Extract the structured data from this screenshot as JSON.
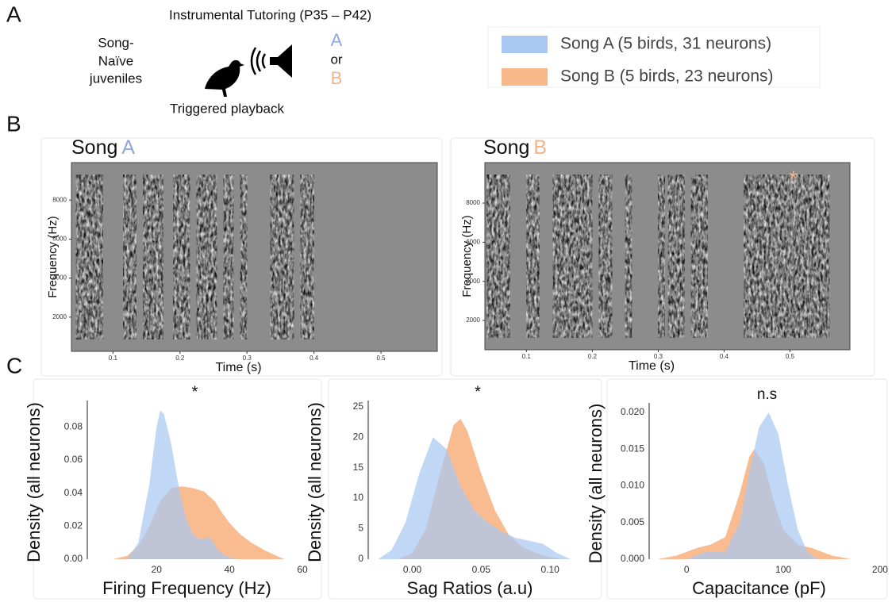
{
  "panel_labels": [
    "A",
    "B",
    "C"
  ],
  "tutoring": {
    "title": "Instrumental Tutoring (P35 – P42)",
    "group_lines": [
      "Song-",
      "Naïve",
      "juveniles"
    ],
    "option_a": "A",
    "option_or": "or",
    "option_b": "B",
    "caption": "Triggered playback"
  },
  "legend": [
    {
      "name": "Song A (5 birds, 31 neurons)",
      "color": "#a9c8f2"
    },
    {
      "name": "Song B (5 birds, 23 neurons)",
      "color": "#f8b88a"
    }
  ],
  "spectrograms": [
    {
      "title": "Song",
      "letter": "A",
      "letter_color": "#8fa8d8",
      "ylabel": "Frequency (Hz)",
      "xlabel": "Time (s)",
      "xlim": [
        0.038,
        0.584
      ],
      "xticks": [
        0.1,
        0.2,
        0.3,
        0.4,
        0.5
      ],
      "ylim": [
        245,
        9920
      ],
      "yticks": [
        2000,
        4000,
        6000,
        8000
      ]
    },
    {
      "title": "Song",
      "letter": "B",
      "letter_color": "#f2b48a",
      "ylabel": "Frequency (Hz)",
      "xlabel": "Time (s)",
      "xlim": [
        0.037,
        0.591
      ],
      "xticks": [
        0.1,
        0.2,
        0.3,
        0.4,
        0.5
      ],
      "ylim": [
        500,
        10070
      ],
      "yticks": [
        2000,
        4000,
        6000,
        8000
      ],
      "annotation": "*"
    }
  ],
  "chart_data": [
    {
      "type": "area",
      "annotation": "*",
      "ylabel": "Density (all neurons)",
      "xlabel": "Firing Frequency (Hz)",
      "xlim": [
        1,
        60
      ],
      "xticks": [
        20,
        40,
        60
      ],
      "ylim": [
        0,
        0.096
      ],
      "yticks": [
        {
          "value": 0,
          "label": "0.00"
        },
        {
          "value": 0.02,
          "label": "0.02"
        },
        {
          "value": 0.04,
          "label": "0.04"
        },
        {
          "value": 0.06,
          "label": "0.06"
        },
        {
          "value": 0.08,
          "label": "0.08"
        }
      ],
      "series": [
        {
          "name": "Song B (5 birds, 23 neurons)",
          "color": "#f8b88a",
          "x": [
            8,
            12,
            15,
            18,
            21,
            24,
            27,
            30,
            33,
            36,
            38,
            40,
            43,
            46,
            50,
            55
          ],
          "values": [
            0,
            0.002,
            0.008,
            0.02,
            0.035,
            0.043,
            0.044,
            0.043,
            0.041,
            0.035,
            0.028,
            0.022,
            0.015,
            0.01,
            0.005,
            0
          ]
        },
        {
          "name": "Song A (5 birds, 31 neurons)",
          "color": "#a9c8f2",
          "x": [
            12,
            15,
            18,
            20,
            21,
            22,
            24,
            26,
            28,
            30,
            32,
            34,
            35,
            37,
            40,
            42
          ],
          "values": [
            0,
            0.01,
            0.045,
            0.08,
            0.09,
            0.088,
            0.07,
            0.045,
            0.025,
            0.015,
            0.012,
            0.013,
            0.012,
            0.005,
            0.001,
            0
          ]
        }
      ]
    },
    {
      "type": "area",
      "annotation": "*",
      "ylabel": "Density (all neurons)",
      "xlabel": "Sag Ratios (a.u)",
      "xlim": [
        -0.032,
        0.127
      ],
      "xticks": [
        {
          "value": 0,
          "label": "0.00"
        },
        {
          "value": 0.05,
          "label": "0.05"
        },
        {
          "value": 0.1,
          "label": "0.10"
        }
      ],
      "ylim": [
        0,
        26
      ],
      "yticks": [
        0,
        5,
        10,
        15,
        20,
        25
      ],
      "series": [
        {
          "name": "Song B (5 birds, 23 neurons)",
          "color": "#f8b88a",
          "x": [
            -0.01,
            0.0,
            0.01,
            0.02,
            0.03,
            0.035,
            0.04,
            0.05,
            0.06,
            0.07,
            0.08,
            0.09,
            0.1,
            0.11
          ],
          "values": [
            0,
            1,
            5,
            14,
            22,
            23,
            21,
            14,
            8,
            4,
            2,
            1,
            0.3,
            0
          ]
        },
        {
          "name": "Song A (5 birds, 31 neurons)",
          "color": "#a9c8f2",
          "x": [
            -0.025,
            -0.015,
            -0.005,
            0.005,
            0.015,
            0.025,
            0.035,
            0.045,
            0.055,
            0.065,
            0.075,
            0.085,
            0.095,
            0.105,
            0.115
          ],
          "values": [
            0,
            1.5,
            6,
            14,
            20,
            18,
            12,
            8,
            6,
            4.5,
            3.5,
            3,
            2.5,
            1,
            0
          ]
        }
      ]
    },
    {
      "type": "area",
      "annotation": "n.s",
      "ylabel": "Density (all neurons)",
      "xlabel": "Capacitance (pF)",
      "xlim": [
        -38.7,
        205
      ],
      "xticks": [
        0,
        100,
        200
      ],
      "ylim": [
        0,
        0.0213
      ],
      "yticks": [
        {
          "value": 0,
          "label": "0.000"
        },
        {
          "value": 0.005,
          "label": "0.005"
        },
        {
          "value": 0.01,
          "label": "0.010"
        },
        {
          "value": 0.015,
          "label": "0.015"
        },
        {
          "value": 0.02,
          "label": "0.020"
        }
      ],
      "series": [
        {
          "name": "Song B (5 birds, 23 neurons)",
          "color": "#f8b88a",
          "x": [
            -30,
            -10,
            10,
            25,
            40,
            55,
            65,
            70,
            80,
            90,
            100,
            115,
            130,
            150,
            170
          ],
          "values": [
            0,
            0.0005,
            0.0015,
            0.002,
            0.003,
            0.009,
            0.014,
            0.015,
            0.013,
            0.008,
            0.004,
            0.002,
            0.0015,
            0.0005,
            0
          ]
        },
        {
          "name": "Song A (5 birds, 31 neurons)",
          "color": "#a9c8f2",
          "x": [
            0,
            20,
            40,
            55,
            65,
            75,
            85,
            95,
            105,
            115,
            125,
            135
          ],
          "values": [
            0,
            0.001,
            0.001,
            0.005,
            0.012,
            0.018,
            0.02,
            0.017,
            0.01,
            0.004,
            0.001,
            0
          ]
        }
      ]
    }
  ]
}
